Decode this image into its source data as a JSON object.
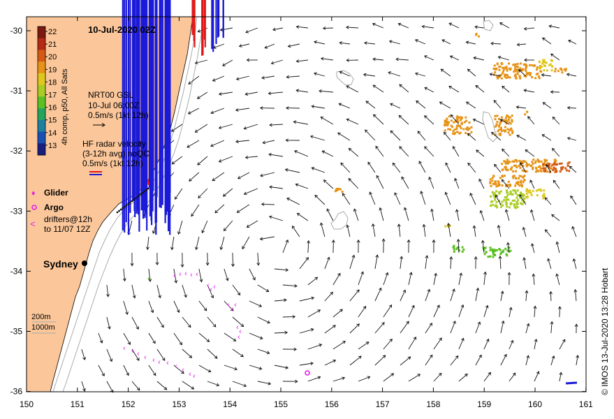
{
  "title": "10-Jul-2020 02Z",
  "credit": "© IMOS 13-Jul-2020 13:28 Hobart",
  "x_ticks": [
    "150",
    "151",
    "152",
    "153",
    "154",
    "155",
    "156",
    "157",
    "158",
    "159",
    "160",
    "161"
  ],
  "y_ticks": [
    "-30",
    "-31",
    "-32",
    "-33",
    "-34",
    "-35",
    "-36"
  ],
  "colorbar": {
    "label": "4h comp, p50, All Sats",
    "ticks": [
      "22",
      "21",
      "20",
      "19",
      "18",
      "17",
      "16",
      "15",
      "14",
      "13"
    ],
    "colors": [
      "#7a1a12",
      "#b42a15",
      "#d45a16",
      "#e69317",
      "#dfc81d",
      "#aacd25",
      "#5cc025",
      "#26a45b",
      "#1f7f9f",
      "#1a4fb3",
      "#1a1e7e"
    ]
  },
  "legend": {
    "gsl_lines": [
      "NRT00 GSL",
      "10-Jul 06:00Z",
      "0.5m/s (1kt 12h)"
    ],
    "hf_lines": [
      "HF radar velocity",
      "(3-12h avg) noQC",
      "0.5m/s (1kt 12h)"
    ],
    "glider": "Glider",
    "argo": "Argo",
    "drifters_lines": [
      "drifters@12h",
      "to 11/07 12Z"
    ],
    "sydney": "Sydney",
    "depth_200": "200m",
    "depth_1000": "1000m"
  },
  "colors": {
    "land": "#fbc79a",
    "hf_blue": "#1a1ad8",
    "hf_red": "#e01818",
    "drifter": "#e21ee8",
    "arrow": "#111111",
    "isobath": "#aaaaaa"
  }
}
